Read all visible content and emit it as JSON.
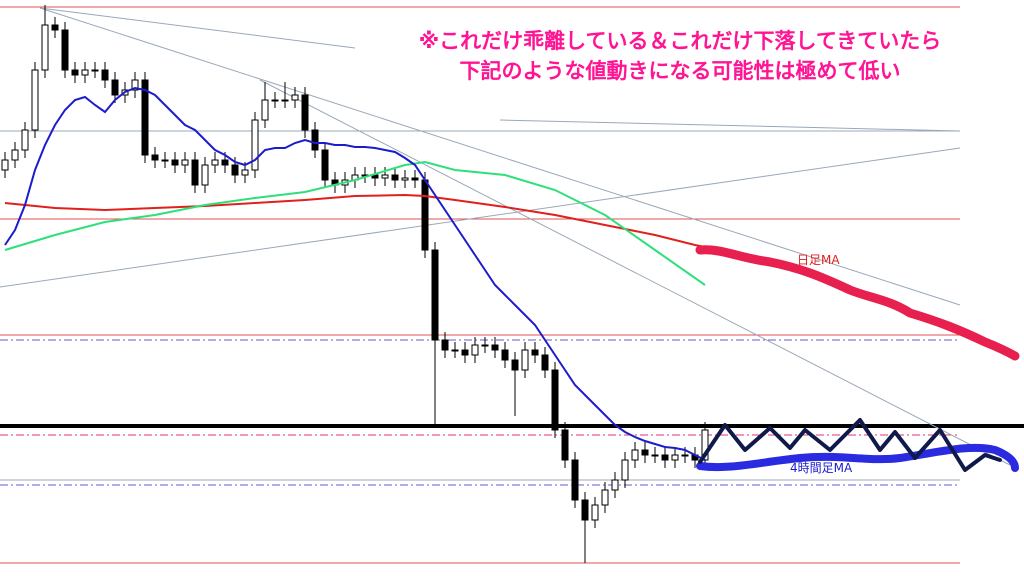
{
  "chart_data": {
    "type": "candlestick",
    "annotations": [
      "※これだけ乖離している＆これだけ下落してきていたら",
      "下記のような値動きになる可能性は極めて低い"
    ],
    "ylim": [
      0,
      576
    ],
    "open": [
      406,
      416,
      426,
      446,
      506,
      551,
      546,
      506,
      501,
      506,
      506,
      496,
      481,
      486,
      496,
      421,
      416,
      416,
      411,
      416,
      391,
      411,
      416,
      411,
      401,
      406,
      456,
      476,
      476,
      476,
      481,
      446,
      426,
      396,
      391,
      396,
      401,
      401,
      398,
      401,
      396,
      398,
      396,
      326,
      236,
      226,
      226,
      221,
      231,
      231,
      226,
      216,
      206,
      226,
      221,
      206,
      146,
      116,
      76,
      56,
      71,
      86,
      96,
      116,
      126,
      121,
      121,
      116,
      121,
      121,
      116
    ],
    "high": [
      424,
      434,
      454,
      514,
      571,
      559,
      554,
      514,
      514,
      514,
      514,
      504,
      494,
      504,
      504,
      429,
      424,
      424,
      424,
      424,
      419,
      424,
      424,
      419,
      414,
      464,
      494,
      484,
      494,
      489,
      489,
      454,
      434,
      404,
      404,
      409,
      409,
      409,
      409,
      409,
      406,
      406,
      404,
      334,
      244,
      234,
      234,
      239,
      239,
      239,
      234,
      224,
      234,
      234,
      229,
      214,
      154,
      124,
      84,
      79,
      94,
      104,
      124,
      134,
      134,
      129,
      129,
      129,
      129,
      129,
      154
    ],
    "low": [
      398,
      408,
      418,
      438,
      498,
      538,
      498,
      493,
      493,
      498,
      488,
      473,
      473,
      478,
      413,
      408,
      408,
      403,
      403,
      383,
      383,
      403,
      403,
      393,
      393,
      398,
      448,
      468,
      468,
      468,
      438,
      418,
      388,
      383,
      383,
      388,
      393,
      390,
      390,
      388,
      388,
      388,
      318,
      150,
      218,
      218,
      213,
      213,
      223,
      218,
      208,
      160,
      198,
      213,
      198,
      138,
      108,
      68,
      13,
      48,
      63,
      78,
      88,
      108,
      113,
      113,
      108,
      108,
      113,
      108,
      108
    ],
    "close": [
      416,
      426,
      446,
      506,
      551,
      546,
      506,
      501,
      506,
      506,
      496,
      481,
      486,
      496,
      421,
      416,
      416,
      411,
      416,
      391,
      411,
      416,
      411,
      401,
      406,
      456,
      476,
      476,
      476,
      481,
      446,
      426,
      396,
      391,
      396,
      401,
      401,
      398,
      401,
      396,
      398,
      396,
      326,
      236,
      226,
      226,
      221,
      231,
      231,
      226,
      216,
      206,
      226,
      221,
      206,
      146,
      116,
      76,
      56,
      71,
      86,
      96,
      116,
      126,
      121,
      121,
      116,
      121,
      121,
      116,
      146
    ],
    "series": [
      {
        "name": "日足MA",
        "color": "#e0201c",
        "x": [
          0,
          5,
          10,
          15,
          20,
          25,
          30,
          35,
          40,
          42,
          45,
          50,
          55,
          60,
          65,
          69,
          70
        ],
        "values": [
          373,
          368,
          366,
          368,
          370,
          373,
          376,
          380,
          381,
          380,
          376,
          369,
          361,
          351,
          341,
          331,
          329
        ]
      },
      {
        "color": "#2ee07a",
        "x": [
          0,
          5,
          10,
          15,
          20,
          25,
          30,
          35,
          40,
          42,
          45,
          50,
          55,
          60,
          65,
          70
        ],
        "values": [
          326,
          341,
          354,
          361,
          371,
          378,
          384,
          396,
          411,
          414,
          406,
          401,
          386,
          361,
          326,
          291
        ]
      },
      {
        "name": "4時間足MA",
        "color": "#1c1ccc",
        "values": [
          331,
          346,
          371,
          406,
          431,
          451,
          466,
          476,
          479,
          471,
          464,
          476,
          484,
          488,
          486,
          481,
          471,
          461,
          451,
          446,
          436,
          426,
          421,
          414,
          411,
          416,
          426,
          428,
          428,
          433,
          436,
          433,
          433,
          431,
          431,
          429,
          429,
          428,
          426,
          424,
          418,
          411,
          396,
          381,
          366,
          351,
          336,
          321,
          306,
          291,
          281,
          271,
          261,
          251,
          236,
          221,
          206,
          191,
          181,
          171,
          161,
          151,
          144,
          139,
          135,
          132,
          129,
          128,
          126,
          121,
          116
        ]
      }
    ],
    "levels": [
      {
        "value": 569,
        "color": "#e05050",
        "style": "solid"
      },
      {
        "value": 445,
        "color": "#9aa8b8",
        "style": "solid"
      },
      {
        "value": 357,
        "color": "#e05050",
        "style": "solid"
      },
      {
        "value": 241,
        "color": "#e05050",
        "style": "solid"
      },
      {
        "value": 236,
        "color": "#6a5acd",
        "style": "dashed"
      },
      {
        "value": 150,
        "color": "#000000",
        "style": "bold"
      },
      {
        "value": 141,
        "color": "#e0307a",
        "style": "dashed"
      },
      {
        "value": 96,
        "color": "#9aa8b8",
        "style": "solid"
      },
      {
        "value": 91,
        "color": "#6a5acd",
        "style": "dashed"
      },
      {
        "value": 13,
        "color": "#e05050",
        "style": "solid"
      }
    ]
  }
}
